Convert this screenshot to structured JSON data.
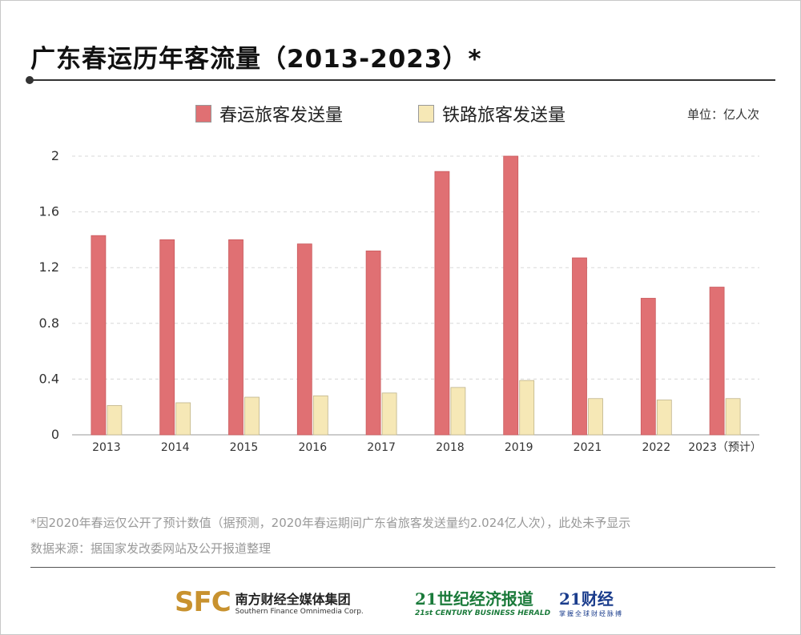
{
  "title": "广东春运历年客流量（2013-2023）*",
  "unit_label": "单位：亿人次",
  "chart_data": {
    "type": "bar",
    "title": "广东春运历年客流量（2013-2023）*",
    "xlabel": "",
    "ylabel": "",
    "categories": [
      "2013",
      "2014",
      "2015",
      "2016",
      "2017",
      "2018",
      "2019",
      "2021",
      "2022",
      "2023（预计）"
    ],
    "series": [
      {
        "name": "春运旅客发送量",
        "color": "#e07073",
        "values": [
          1.43,
          1.4,
          1.4,
          1.37,
          1.32,
          1.89,
          2.0,
          1.27,
          0.98,
          1.06
        ]
      },
      {
        "name": "铁路旅客发送量",
        "color": "#f6e8b6",
        "values": [
          0.21,
          0.23,
          0.27,
          0.28,
          0.3,
          0.34,
          0.39,
          0.26,
          0.25,
          0.26
        ]
      }
    ],
    "ylim": [
      0,
      2
    ],
    "yticks": [
      "0",
      "0.4",
      "0.8",
      "1.2",
      "1.6",
      "2"
    ],
    "grid": true,
    "legend_position": "top"
  },
  "footnotes": [
    "*因2020年春运仅公开了预计数值（据预测，2020年春运期间广东省旅客发送量约2.024亿人次），此处未予显示",
    "数据来源：据国家发改委网站及公开报道整理"
  ],
  "logos": {
    "sfc_mark": "SFC",
    "sfc_cn": "南方财经全媒体集团",
    "sfc_en": "Southern Finance Omnimedia Corp.",
    "herald_cn": "21世纪经济报道",
    "herald_en": "21st CENTURY BUSINESS HERALD",
    "cj_cn": "21财经",
    "cj_sub": "掌握全球财经脉搏"
  }
}
